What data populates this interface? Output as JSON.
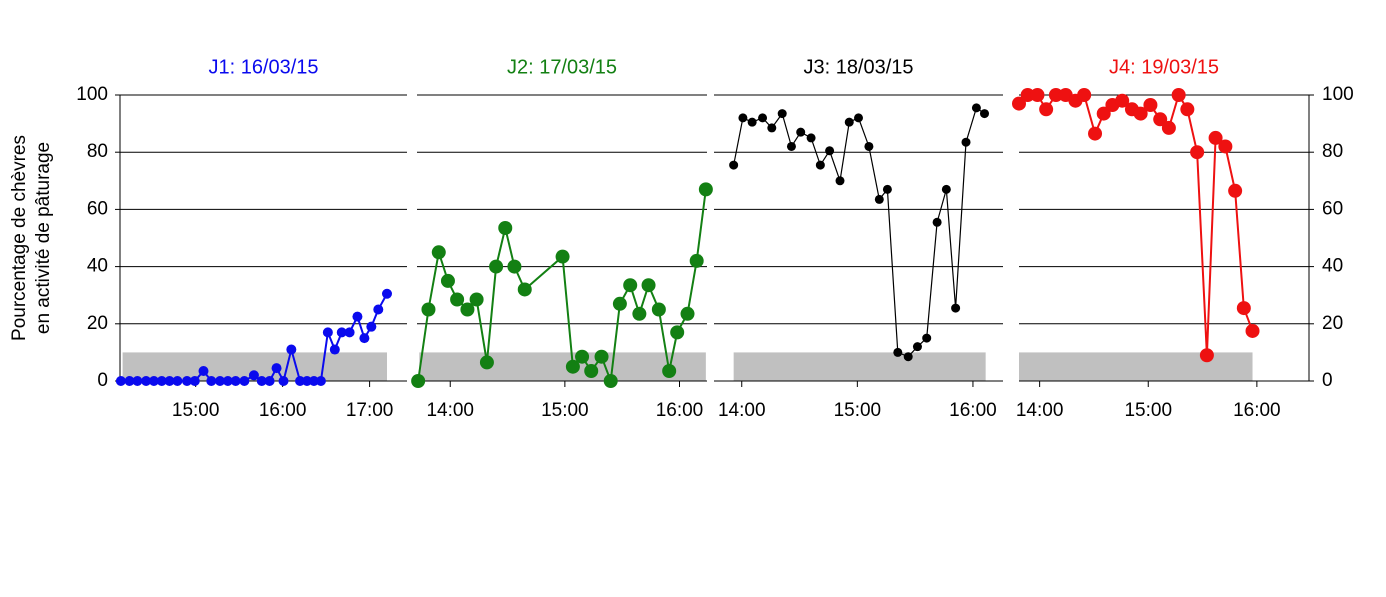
{
  "chart_data": [
    {
      "type": "line",
      "title": "J1: 16/03/15",
      "ylabel": [
        "Pourcentage de chèvres",
        "en activité de pâturage"
      ],
      "yaxis_side": "left",
      "grid": true,
      "xlim": [
        14.13,
        17.43
      ],
      "xticks": [
        {
          "value": 15,
          "label": "15:00"
        },
        {
          "value": 16,
          "label": "16:00"
        },
        {
          "value": 17,
          "label": "17:00"
        }
      ],
      "ylim": [
        0,
        100
      ],
      "yticks": [
        0,
        20,
        40,
        60,
        80,
        100
      ],
      "shaded_region": {
        "x": [
          14.16,
          17.2
        ],
        "y": [
          0,
          10
        ],
        "color": "#c0c0c0"
      },
      "series": [
        {
          "color": "#0a0aee",
          "x": [
            14.14,
            14.24,
            14.33,
            14.43,
            14.52,
            14.61,
            14.7,
            14.79,
            14.9,
            14.99,
            15.09,
            15.18,
            15.28,
            15.37,
            15.46,
            15.56,
            15.67,
            15.76,
            15.85,
            15.93,
            16.01,
            16.1,
            16.2,
            16.28,
            16.36,
            16.44,
            16.52,
            16.6,
            16.68,
            16.77,
            16.86,
            16.94,
            17.02,
            17.1,
            17.2
          ],
          "values": [
            0,
            0,
            0,
            0,
            0,
            0,
            0,
            0,
            0,
            0,
            3.5,
            0,
            0,
            0,
            0,
            0,
            2,
            0,
            0,
            4.5,
            0,
            11,
            0,
            0,
            0,
            0,
            17,
            11,
            17,
            17,
            22.5,
            15,
            19,
            25,
            30.5
          ]
        }
      ]
    },
    {
      "type": "line",
      "title": "J2: 17/03/15",
      "grid": true,
      "xlim": [
        13.71,
        16.24
      ],
      "xticks": [
        {
          "value": 14,
          "label": "14:00"
        },
        {
          "value": 15,
          "label": "15:00"
        },
        {
          "value": 16,
          "label": "16:00"
        }
      ],
      "ylim": [
        0,
        100
      ],
      "yticks": [
        0,
        20,
        40,
        60,
        80,
        100
      ],
      "shaded_region": {
        "x": [
          13.73,
          16.23
        ],
        "y": [
          0,
          10
        ],
        "color": "#c0c0c0"
      },
      "series": [
        {
          "color": "#138013",
          "x": [
            13.72,
            13.81,
            13.9,
            13.98,
            14.06,
            14.15,
            14.23,
            14.32,
            14.4,
            14.48,
            14.56,
            14.65,
            14.98,
            15.07,
            15.15,
            15.23,
            15.32,
            15.4,
            15.48,
            15.57,
            15.65,
            15.73,
            15.82,
            15.91,
            15.98,
            16.07,
            16.15,
            16.23
          ],
          "values": [
            0,
            25,
            45,
            35,
            28.5,
            25,
            28.5,
            6.5,
            40,
            53.5,
            40,
            32,
            43.5,
            5,
            8.5,
            3.5,
            8.5,
            0,
            27,
            33.5,
            23.5,
            33.5,
            25,
            3.5,
            17,
            23.5,
            42,
            67
          ]
        }
      ]
    },
    {
      "type": "line",
      "title": "J3: 18/03/15",
      "grid": true,
      "xlim": [
        13.76,
        16.26
      ],
      "xticks": [
        {
          "value": 14,
          "label": "14:00"
        },
        {
          "value": 15,
          "label": "15:00"
        },
        {
          "value": 16,
          "label": "16:00"
        }
      ],
      "ylim": [
        0,
        100
      ],
      "yticks": [
        0,
        20,
        40,
        60,
        80,
        100
      ],
      "shaded_region": {
        "x": [
          13.93,
          16.11
        ],
        "y": [
          0,
          10
        ],
        "color": "#c0c0c0"
      },
      "series": [
        {
          "color": "#000000",
          "x": [
            13.93,
            14.01,
            14.09,
            14.18,
            14.26,
            14.35,
            14.43,
            14.51,
            14.6,
            14.68,
            14.76,
            14.85,
            14.93,
            15.01,
            15.1,
            15.19,
            15.26,
            15.35,
            15.44,
            15.52,
            15.6,
            15.69,
            15.77,
            15.85,
            15.94,
            16.03,
            16.1
          ],
          "values": [
            75.5,
            92,
            90.5,
            92,
            88.5,
            93.5,
            82,
            87,
            85,
            75.5,
            80.5,
            70,
            90.5,
            92,
            82,
            63.5,
            67,
            10,
            8.5,
            12,
            15,
            55.5,
            67,
            25.5,
            83.5,
            95.5,
            93.5
          ]
        }
      ]
    },
    {
      "type": "line",
      "title": "J4: 19/03/15",
      "yaxis_side": "right",
      "grid": true,
      "xlim": [
        13.81,
        16.48
      ],
      "xticks": [
        {
          "value": 14,
          "label": "14:00"
        },
        {
          "value": 15,
          "label": "15:00"
        },
        {
          "value": 16,
          "label": "16:00"
        }
      ],
      "ylim": [
        0,
        100
      ],
      "yticks": [
        0,
        20,
        40,
        60,
        80,
        100
      ],
      "shaded_region": {
        "x": [
          13.81,
          15.96
        ],
        "y": [
          0,
          10
        ],
        "color": "#c0c0c0"
      },
      "series": [
        {
          "color": "#ee1111",
          "x": [
            13.81,
            13.89,
            13.98,
            14.06,
            14.15,
            14.24,
            14.33,
            14.41,
            14.51,
            14.59,
            14.67,
            14.76,
            14.85,
            14.93,
            15.02,
            15.11,
            15.19,
            15.28,
            15.36,
            15.45,
            15.54,
            15.62,
            15.71,
            15.8,
            15.88,
            15.96
          ],
          "values": [
            97,
            100,
            100,
            95,
            100,
            100,
            98,
            100,
            86.5,
            93.5,
            96.5,
            98,
            95,
            93.5,
            96.5,
            91.5,
            88.5,
            100,
            95,
            80,
            9,
            85,
            82,
            66.5,
            25.5,
            17.5
          ]
        }
      ]
    }
  ]
}
